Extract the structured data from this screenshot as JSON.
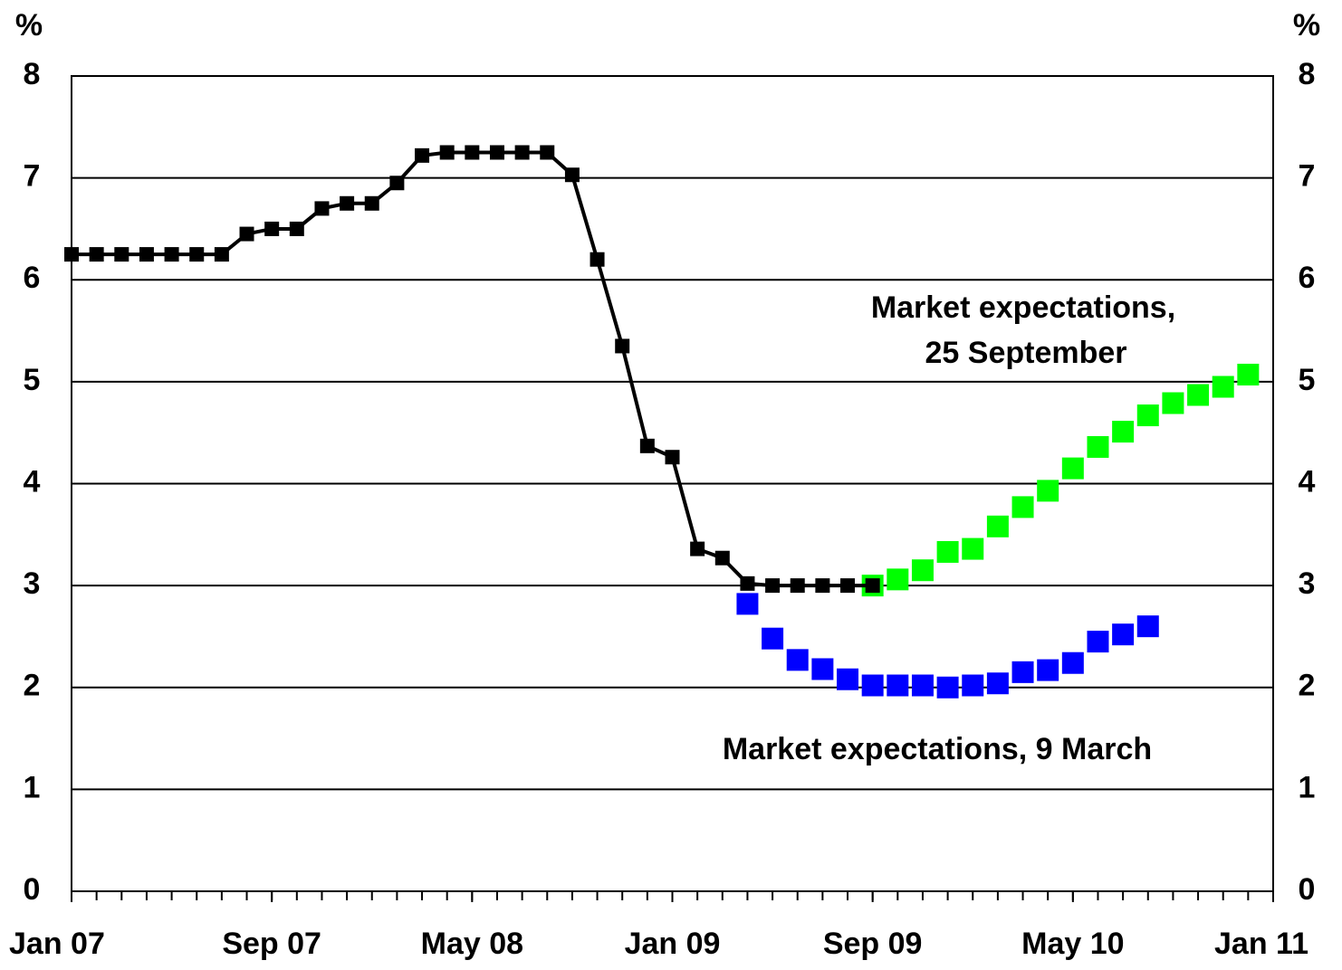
{
  "chart_data": {
    "type": "line",
    "ylabel": "%",
    "xlim": [
      "2007-01",
      "2011-01"
    ],
    "xticks": [
      {
        "value": "2007-01",
        "label": "Jan 07"
      },
      {
        "value": "2007-09",
        "label": "Sep 07"
      },
      {
        "value": "2008-05",
        "label": "May 08"
      },
      {
        "value": "2009-01",
        "label": "Jan 09"
      },
      {
        "value": "2009-09",
        "label": "Sep 09"
      },
      {
        "value": "2010-05",
        "label": "May 10"
      },
      {
        "value": "2011-01",
        "label": "Jan 11"
      }
    ],
    "ylim": [
      0,
      8
    ],
    "yticks": [
      0,
      1,
      2,
      3,
      4,
      5,
      6,
      7,
      8
    ],
    "grid": true,
    "series": [
      {
        "color": "#000000",
        "marker": "square",
        "line": true,
        "x": [
          "2007-01",
          "2007-02",
          "2007-03",
          "2007-04",
          "2007-05",
          "2007-06",
          "2007-07",
          "2007-08",
          "2007-09",
          "2007-10",
          "2007-11",
          "2007-12",
          "2008-01",
          "2008-02",
          "2008-03",
          "2008-04",
          "2008-05",
          "2008-06",
          "2008-07",
          "2008-08",
          "2008-09",
          "2008-10",
          "2008-11",
          "2008-12",
          "2009-01",
          "2009-02",
          "2009-03",
          "2009-04",
          "2009-05",
          "2009-06",
          "2009-07",
          "2009-08",
          "2009-09"
        ],
        "values": [
          6.25,
          6.25,
          6.25,
          6.25,
          6.25,
          6.25,
          6.25,
          6.45,
          6.5,
          6.5,
          6.7,
          6.75,
          6.75,
          6.95,
          7.22,
          7.25,
          7.25,
          7.25,
          7.25,
          7.25,
          7.03,
          6.2,
          5.35,
          4.37,
          4.26,
          3.36,
          3.27,
          3.02,
          3.0,
          3.0,
          3.0,
          3.0,
          3.0
        ]
      },
      {
        "color": "#00ff00",
        "marker": "square",
        "line": false,
        "x": [
          "2009-09",
          "2009-10",
          "2009-11",
          "2009-12",
          "2010-01",
          "2010-02",
          "2010-03",
          "2010-04",
          "2010-05",
          "2010-06",
          "2010-07",
          "2010-08",
          "2010-09",
          "2010-10",
          "2010-11",
          "2010-12"
        ],
        "values": [
          3.0,
          3.06,
          3.15,
          3.33,
          3.36,
          3.58,
          3.77,
          3.93,
          4.15,
          4.36,
          4.51,
          4.67,
          4.79,
          4.87,
          4.95,
          5.07
        ]
      },
      {
        "color": "#0000ff",
        "marker": "square",
        "line": false,
        "x": [
          "2009-04",
          "2009-05",
          "2009-06",
          "2009-07",
          "2009-08",
          "2009-09",
          "2009-10",
          "2009-11",
          "2009-12",
          "2010-01",
          "2010-02",
          "2010-03",
          "2010-04",
          "2010-05",
          "2010-06",
          "2010-07",
          "2010-08"
        ],
        "values": [
          2.82,
          2.48,
          2.27,
          2.18,
          2.08,
          2.02,
          2.02,
          2.02,
          2.0,
          2.02,
          2.04,
          2.15,
          2.17,
          2.24,
          2.45,
          2.52,
          2.6
        ]
      }
    ],
    "annotations": [
      "Market expectations,",
      "25 September",
      "Market expectations, 9 March"
    ]
  }
}
